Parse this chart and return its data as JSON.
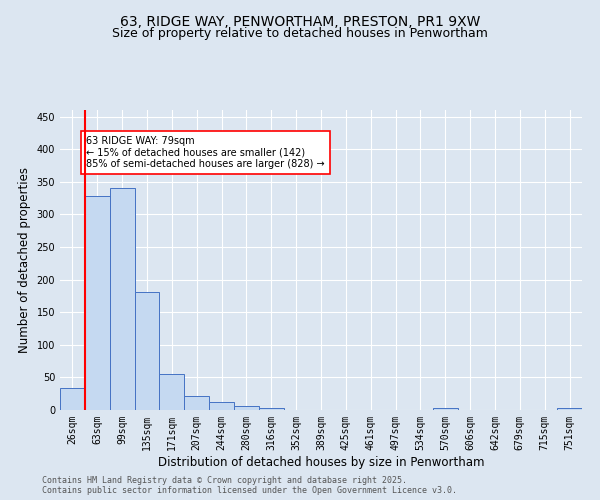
{
  "title_line1": "63, RIDGE WAY, PENWORTHAM, PRESTON, PR1 9XW",
  "title_line2": "Size of property relative to detached houses in Penwortham",
  "xlabel": "Distribution of detached houses by size in Penwortham",
  "ylabel": "Number of detached properties",
  "footer_line1": "Contains HM Land Registry data © Crown copyright and database right 2025.",
  "footer_line2": "Contains public sector information licensed under the Open Government Licence v3.0.",
  "categories": [
    "26sqm",
    "63sqm",
    "99sqm",
    "135sqm",
    "171sqm",
    "207sqm",
    "244sqm",
    "280sqm",
    "316sqm",
    "352sqm",
    "389sqm",
    "425sqm",
    "461sqm",
    "497sqm",
    "534sqm",
    "570sqm",
    "606sqm",
    "642sqm",
    "679sqm",
    "715sqm",
    "751sqm"
  ],
  "values": [
    33,
    328,
    340,
    181,
    55,
    22,
    13,
    6,
    3,
    0,
    0,
    0,
    0,
    0,
    0,
    3,
    0,
    0,
    0,
    0,
    3
  ],
  "bar_color": "#c5d9f1",
  "bar_edge_color": "#4472c4",
  "property_line_color": "red",
  "property_line_xindex": 1,
  "annotation_text": "63 RIDGE WAY: 79sqm\n← 15% of detached houses are smaller (142)\n85% of semi-detached houses are larger (828) →",
  "annotation_box_color": "white",
  "annotation_box_edge_color": "red",
  "ylim": [
    0,
    460
  ],
  "yticks": [
    0,
    50,
    100,
    150,
    200,
    250,
    300,
    350,
    400,
    450
  ],
  "background_color": "#dce6f1",
  "plot_bg_color": "#dce6f1",
  "grid_color": "white",
  "title_fontsize": 10,
  "subtitle_fontsize": 9,
  "axis_label_fontsize": 8.5,
  "tick_fontsize": 7,
  "annotation_fontsize": 7,
  "footer_fontsize": 6
}
